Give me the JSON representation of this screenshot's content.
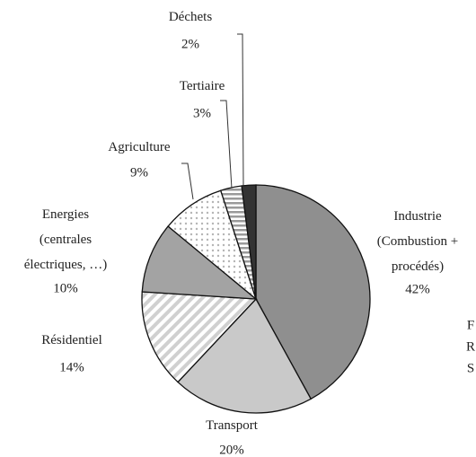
{
  "chart_data": {
    "type": "pie",
    "categories": [
      "Industrie\n(Combustion +\nprocédés)",
      "Transport",
      "Résidentiel",
      "Energies\n(centrales\nélectriques, …)",
      "Agriculture",
      "Tertiaire",
      "Déchets"
    ],
    "values": [
      42,
      20,
      14,
      10,
      9,
      3,
      2
    ],
    "value_labels": [
      "42%",
      "20%",
      "14%",
      "10%",
      "9%",
      "3%",
      "2%"
    ],
    "colors": [
      "#8f8f8f",
      "#c9c9c9",
      "#d0d0d0",
      "#a3a3a3",
      "#b5b5b5",
      "#9a9a9a",
      "#333333"
    ],
    "patterns": [
      "solid",
      "solid",
      "diagonal",
      "solid",
      "dots",
      "horizontal",
      "solid"
    ],
    "annotations": [
      "F",
      "R",
      "S"
    ]
  }
}
